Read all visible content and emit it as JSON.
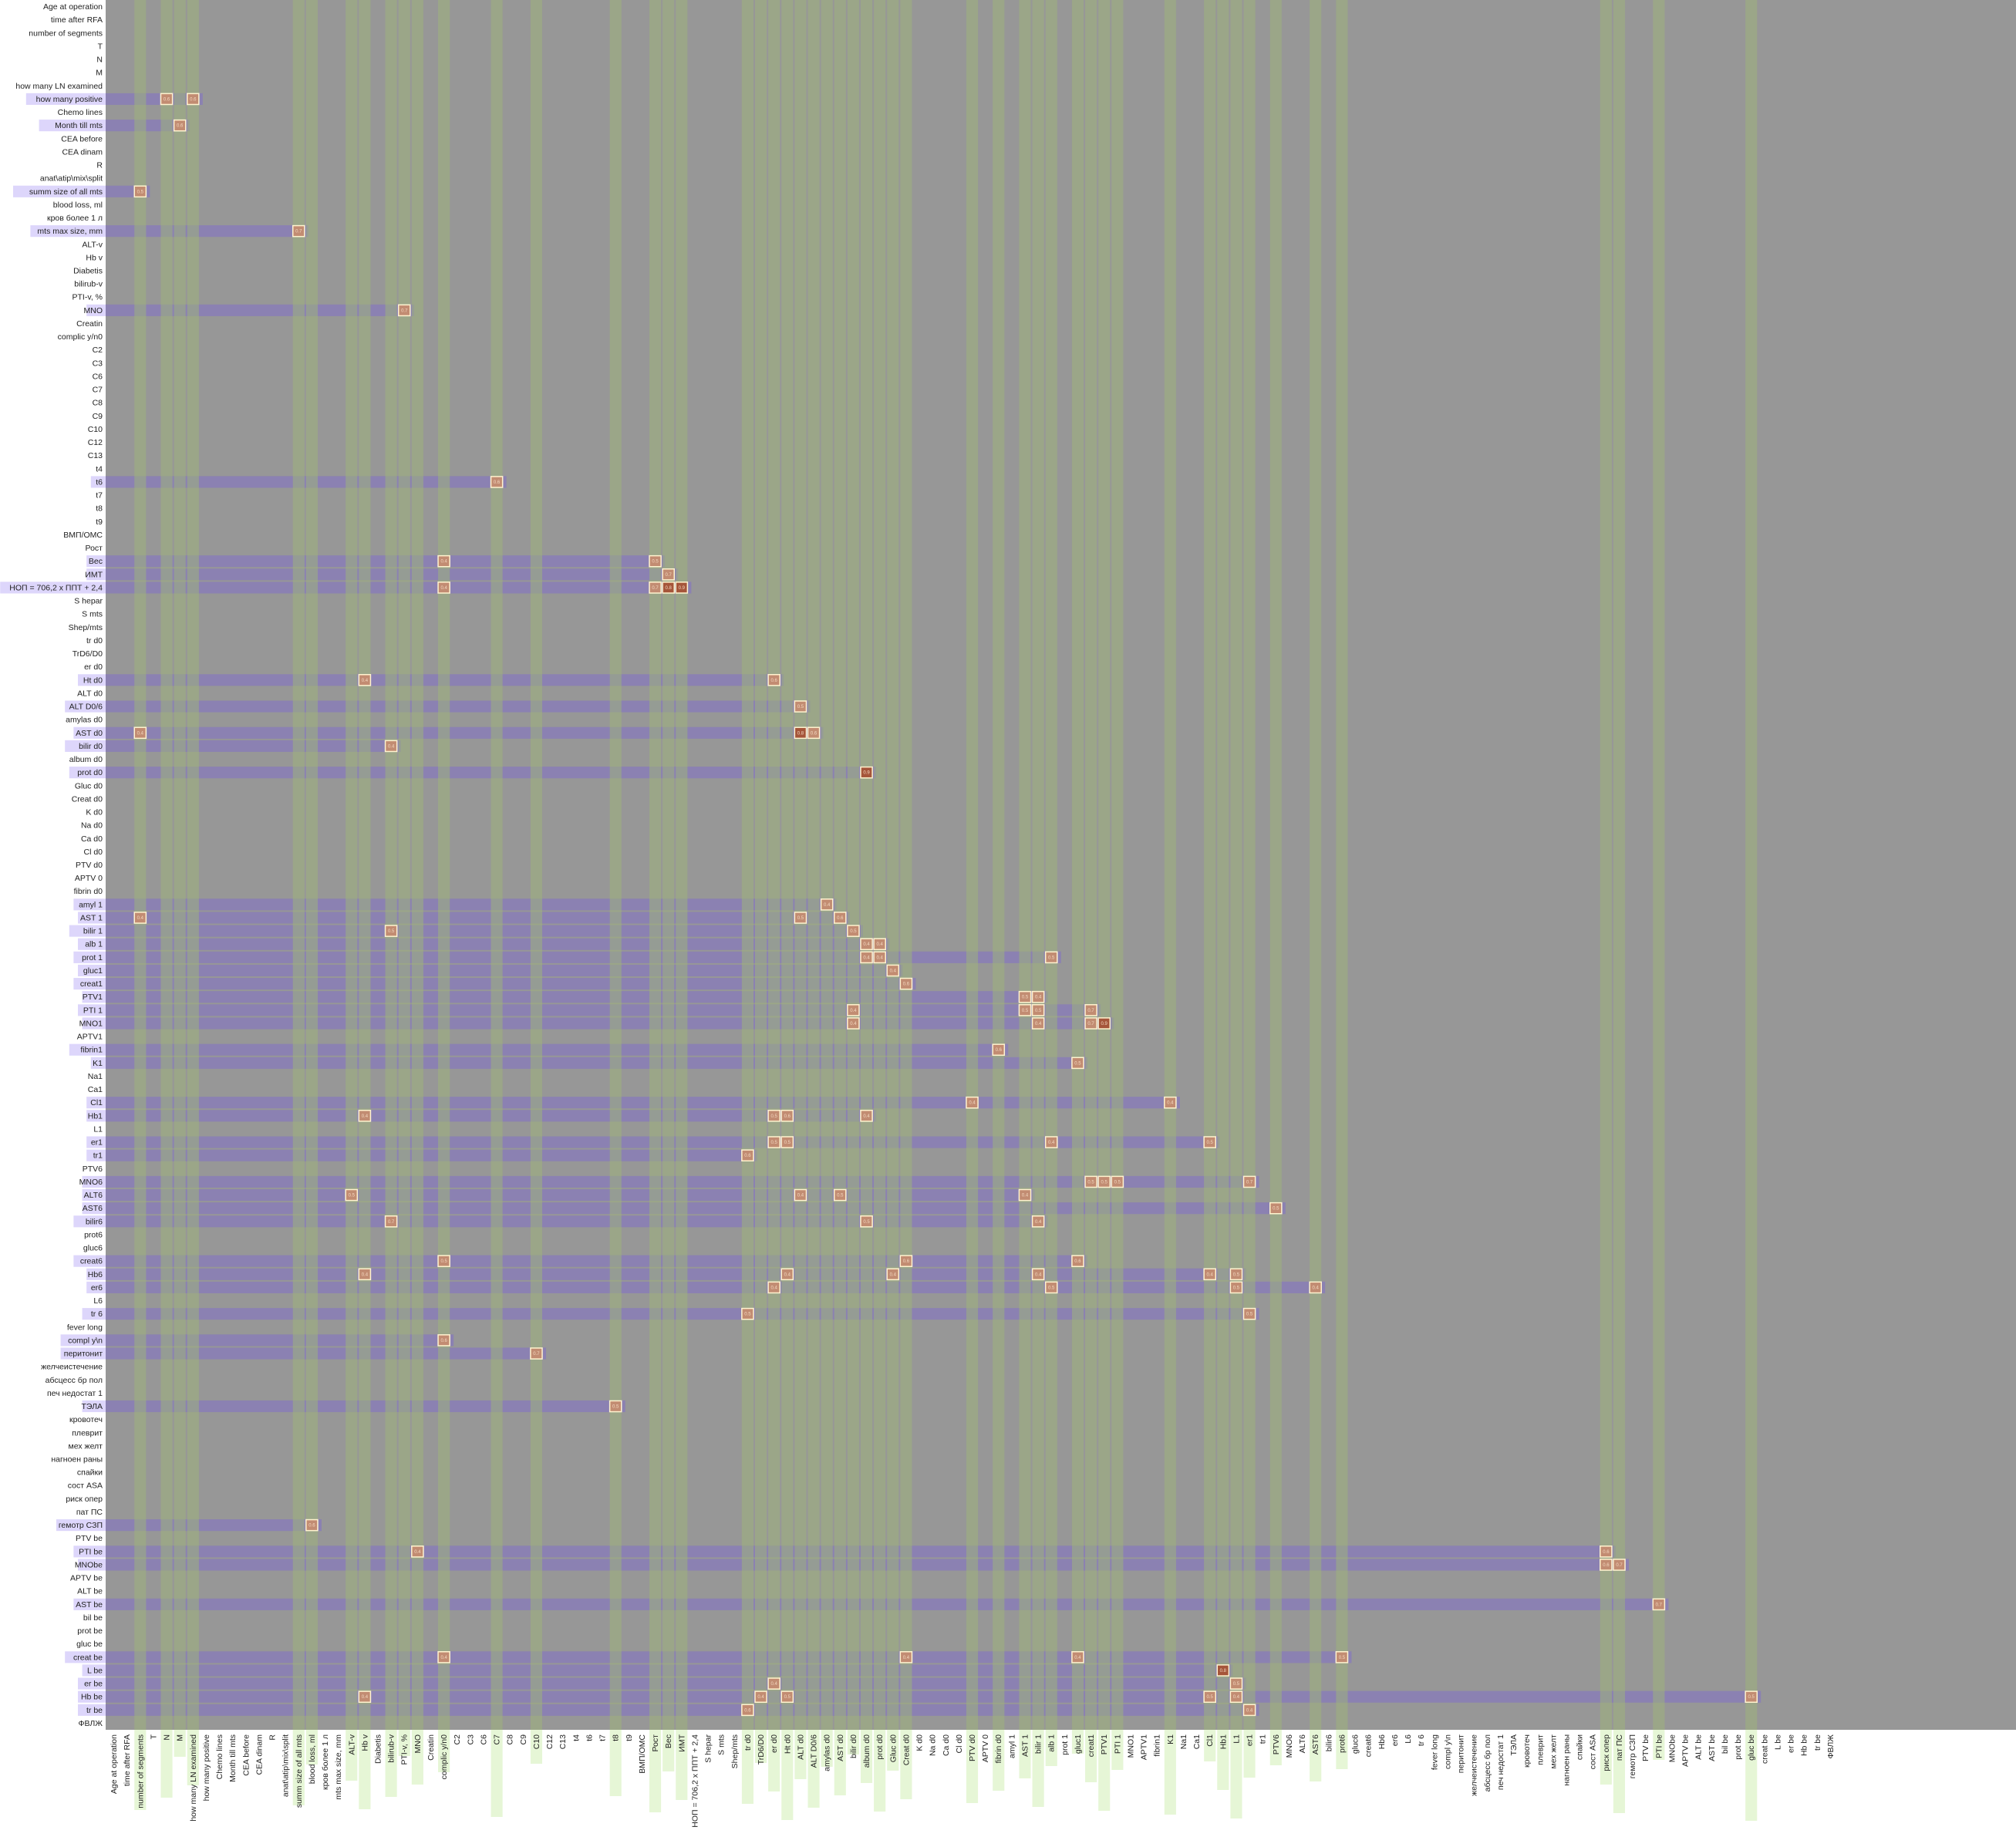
{
  "chart_data": {
    "type": "heatmap",
    "title": "",
    "xlabel": "",
    "ylabel": "",
    "colors": {
      "background": "#979797",
      "row_band": "#8a80b3",
      "row_label_highlight": "#ddd6fb",
      "col_band": "#9fb37c",
      "col_band_below": "#e6f6d6",
      "cell": "#c28c72",
      "cell_dark": "#a5553a",
      "cell_border": "#fff3cf"
    },
    "variables": [
      "Age at operation",
      "time after RFA",
      "number of segments",
      "T",
      "N",
      "M",
      "how many LN examined",
      "how many positive",
      "Chemo lines",
      "Month till mts",
      "CEA before",
      "CEA dinam",
      "R",
      "anat\\atip\\mix\\split",
      "summ size of all mts",
      "blood loss, ml",
      "кров более 1 л",
      "mts max size, mm",
      "ALT-v",
      "Hb v",
      "Diabetis",
      "bilirub-v",
      "PTI-v, %",
      "MNO",
      "Creatin",
      "complic y/n0",
      "C2",
      "C3",
      "C6",
      "C7",
      "C8",
      "C9",
      "C10",
      "C12",
      "C13",
      "t4",
      "t6",
      "t7",
      "t8",
      "t9",
      "ВМП/ОМС",
      "Рост",
      "Вес",
      "ИМТ",
      "НОП = 706,2 х ППТ + 2,4",
      "S hepar",
      "S mts",
      "Shep/mts",
      "tr d0",
      "TrD6/D0",
      "er d0",
      "Ht d0",
      "ALT d0",
      "ALT D0/6",
      "amylas d0",
      "AST d0",
      "bilir d0",
      "album d0",
      "prot d0",
      "Gluc d0",
      "Creat d0",
      "K d0",
      "Na d0",
      "Ca d0",
      "Cl d0",
      "PTV d0",
      "APTV 0",
      "fibrin d0",
      "amyl 1",
      "AST 1",
      "bilir 1",
      "alb 1",
      "prot 1",
      "gluc1",
      "creat1",
      "PTV1",
      "PTI 1",
      "MNO1",
      "APTV1",
      "fibrin1",
      "K1",
      "Na1",
      "Ca1",
      "Cl1",
      "Hb1",
      "L1",
      "er1",
      "tr1",
      "PTV6",
      "MNO6",
      "ALT6",
      "AST6",
      "bilir6",
      "prot6",
      "gluc6",
      "creat6",
      "Hb6",
      "er6",
      "L6",
      "tr 6",
      "fever long",
      "compl y\\n",
      "перитонит",
      "желчеистечение",
      "абсцесс бр пол",
      "печ недостат 1",
      "ТЭЛА",
      "кровотеч",
      "плеврит",
      "мех желт",
      "нагноен раны",
      "спайки",
      "сост ASA",
      "риск опер",
      "пат ПС",
      "гемотр СЗП",
      "PTV be",
      "PTI be",
      "MNObe",
      "APTV be",
      "ALT be",
      "AST be",
      "bil be",
      "prot be",
      "gluc be",
      "creat be",
      "L be",
      "er be",
      "Hb be",
      "tr be",
      "ФВЛЖ"
    ],
    "column_labels": [
      "Age at operation",
      "time after RFA",
      "number of segments",
      "T",
      "N",
      "M",
      "how many LN examined",
      "how many positive",
      "Chemo lines",
      "Month till mts",
      "CEA before",
      "CEA dinam",
      "R",
      "anat\\atip\\mix\\split",
      "summ size of all mts",
      "blood loss, ml",
      "кров более 1 л",
      "mts max size, mm",
      "ALT-v",
      "Hb v",
      "Diabetis",
      "bilirub-v",
      "PTI-v, %",
      "MNO",
      "Creatin",
      "complic y/n0",
      "C2",
      "C3",
      "C6",
      "C7",
      "C8",
      "C9",
      "C10",
      "C12",
      "C13",
      "t4",
      "t6",
      "t7",
      "t8",
      "t9",
      "ВМП/ОМС",
      "Рост",
      "Вес",
      "ИМТ",
      "НОП = 706,2 х ППТ + 2,4",
      "S hepar",
      "S mts",
      "Shep/mts",
      "tr d0",
      "TrD6/D0",
      "er d0",
      "Ht d0",
      "ALT d0",
      "ALT D0/6",
      "amylas d0",
      "AST d0",
      "bilir d0",
      "album d0",
      "prot d0",
      "Gluc d0",
      "Creat d0",
      "K d0",
      "Na d0",
      "Ca d0",
      "Cl d0",
      "PTV d0",
      "APTV 0",
      "fibrin d0",
      "amyl 1",
      "AST 1",
      "bilir 1",
      "alb 1",
      "prot 1",
      "gluc1",
      "creat1",
      "PTV1",
      "PTI 1",
      "MNO1",
      "APTV1",
      "fibrin1",
      "K1",
      "Na1",
      "Ca1",
      "Cl1",
      "Hb1",
      "L1",
      "er1",
      "tr1",
      "PTV6",
      "MNO6",
      "ALT6",
      "AST6",
      "bilir6",
      "prot6",
      "gluc6",
      "creat6",
      "Hb6",
      "er6",
      "L6",
      "tr 6",
      "fever long",
      "compl y\\n",
      "перитонит",
      "желчеистечение",
      "абсцесс бр пол",
      "печ недостат 1",
      "ТЭЛА",
      "кровотеч",
      "плеврит",
      "мех желт",
      "нагноен раны",
      "спайки",
      "сост ASA",
      "риск опер",
      "пат ПС",
      "гемотр СЗП",
      "PTV be",
      "PTI be",
      "MNObe",
      "APTV be",
      "ALT be",
      "AST be",
      "bil be",
      "prot be",
      "gluc be",
      "creat be",
      "L be",
      "er be",
      "Hb be",
      "tr be",
      "ФВЛЖ"
    ],
    "cells": [
      {
        "row": 7,
        "col": 4,
        "value": 0.6
      },
      {
        "row": 7,
        "col": 6,
        "value": 0.6
      },
      {
        "row": 9,
        "col": 5,
        "value": 0.6
      },
      {
        "row": 14,
        "col": 2,
        "value": 0.5
      },
      {
        "row": 17,
        "col": 14,
        "value": 0.7
      },
      {
        "row": 23,
        "col": 22,
        "value": 0.7
      },
      {
        "row": 36,
        "col": 29,
        "value": 0.6
      },
      {
        "row": 42,
        "col": 25,
        "value": 0.4
      },
      {
        "row": 42,
        "col": 41,
        "value": 0.5
      },
      {
        "row": 43,
        "col": 42,
        "value": 0.7
      },
      {
        "row": 44,
        "col": 25,
        "value": 0.4
      },
      {
        "row": 44,
        "col": 41,
        "value": 0.7
      },
      {
        "row": 44,
        "col": 42,
        "value": 0.8
      },
      {
        "row": 44,
        "col": 43,
        "value": 0.9
      },
      {
        "row": 51,
        "col": 19,
        "value": 0.4
      },
      {
        "row": 51,
        "col": 50,
        "value": 0.6
      },
      {
        "row": 53,
        "col": 52,
        "value": 0.5
      },
      {
        "row": 55,
        "col": 2,
        "value": 0.4
      },
      {
        "row": 55,
        "col": 52,
        "value": 0.8
      },
      {
        "row": 55,
        "col": 53,
        "value": 0.6
      },
      {
        "row": 56,
        "col": 21,
        "value": 0.4
      },
      {
        "row": 58,
        "col": 57,
        "value": 0.9
      },
      {
        "row": 68,
        "col": 54,
        "value": 0.4
      },
      {
        "row": 69,
        "col": 2,
        "value": 0.4
      },
      {
        "row": 69,
        "col": 52,
        "value": 0.5
      },
      {
        "row": 69,
        "col": 55,
        "value": 0.6
      },
      {
        "row": 70,
        "col": 21,
        "value": 0.5
      },
      {
        "row": 70,
        "col": 56,
        "value": 0.5
      },
      {
        "row": 71,
        "col": 57,
        "value": 0.4
      },
      {
        "row": 71,
        "col": 58,
        "value": 0.4
      },
      {
        "row": 72,
        "col": 57,
        "value": 0.4
      },
      {
        "row": 72,
        "col": 58,
        "value": 0.4
      },
      {
        "row": 72,
        "col": 71,
        "value": 0.5
      },
      {
        "row": 73,
        "col": 59,
        "value": 0.4
      },
      {
        "row": 74,
        "col": 60,
        "value": 0.6
      },
      {
        "row": 75,
        "col": 69,
        "value": 0.5
      },
      {
        "row": 75,
        "col": 70,
        "value": 0.4
      },
      {
        "row": 76,
        "col": 56,
        "value": 0.4
      },
      {
        "row": 76,
        "col": 69,
        "value": 0.5
      },
      {
        "row": 76,
        "col": 70,
        "value": 0.5
      },
      {
        "row": 76,
        "col": 74,
        "value": 0.7
      },
      {
        "row": 77,
        "col": 56,
        "value": 0.4
      },
      {
        "row": 77,
        "col": 70,
        "value": 0.4
      },
      {
        "row": 77,
        "col": 74,
        "value": 0.7
      },
      {
        "row": 77,
        "col": 75,
        "value": 0.9
      },
      {
        "row": 79,
        "col": 67,
        "value": 0.6
      },
      {
        "row": 80,
        "col": 73,
        "value": 0.5
      },
      {
        "row": 83,
        "col": 65,
        "value": 0.4
      },
      {
        "row": 83,
        "col": 80,
        "value": 0.4
      },
      {
        "row": 84,
        "col": 19,
        "value": 0.4
      },
      {
        "row": 84,
        "col": 50,
        "value": 0.5
      },
      {
        "row": 84,
        "col": 51,
        "value": 0.6
      },
      {
        "row": 84,
        "col": 57,
        "value": 0.4
      },
      {
        "row": 86,
        "col": 50,
        "value": 0.5
      },
      {
        "row": 86,
        "col": 51,
        "value": 0.5
      },
      {
        "row": 86,
        "col": 71,
        "value": 0.4
      },
      {
        "row": 86,
        "col": 83,
        "value": 0.5
      },
      {
        "row": 87,
        "col": 48,
        "value": 0.6
      },
      {
        "row": 89,
        "col": 74,
        "value": 0.5
      },
      {
        "row": 89,
        "col": 75,
        "value": 0.5
      },
      {
        "row": 89,
        "col": 76,
        "value": 0.5
      },
      {
        "row": 89,
        "col": 86,
        "value": 0.7
      },
      {
        "row": 90,
        "col": 18,
        "value": 0.5
      },
      {
        "row": 90,
        "col": 52,
        "value": 0.4
      },
      {
        "row": 90,
        "col": 55,
        "value": 0.5
      },
      {
        "row": 90,
        "col": 69,
        "value": 0.4
      },
      {
        "row": 91,
        "col": 88,
        "value": 0.5
      },
      {
        "row": 92,
        "col": 21,
        "value": 0.7
      },
      {
        "row": 92,
        "col": 57,
        "value": 0.5
      },
      {
        "row": 92,
        "col": 70,
        "value": 0.4
      },
      {
        "row": 95,
        "col": 25,
        "value": 0.5
      },
      {
        "row": 95,
        "col": 60,
        "value": 0.6
      },
      {
        "row": 95,
        "col": 73,
        "value": 0.6
      },
      {
        "row": 96,
        "col": 19,
        "value": 0.4
      },
      {
        "row": 96,
        "col": 51,
        "value": 0.4
      },
      {
        "row": 96,
        "col": 59,
        "value": 0.4
      },
      {
        "row": 96,
        "col": 70,
        "value": 0.4
      },
      {
        "row": 96,
        "col": 83,
        "value": 0.4
      },
      {
        "row": 96,
        "col": 85,
        "value": 0.5
      },
      {
        "row": 97,
        "col": 50,
        "value": 0.4
      },
      {
        "row": 97,
        "col": 71,
        "value": 0.5
      },
      {
        "row": 97,
        "col": 85,
        "value": 0.5
      },
      {
        "row": 97,
        "col": 91,
        "value": 0.4
      },
      {
        "row": 99,
        "col": 48,
        "value": 0.5
      },
      {
        "row": 99,
        "col": 86,
        "value": 0.5
      },
      {
        "row": 101,
        "col": 25,
        "value": 0.6
      },
      {
        "row": 102,
        "col": 32,
        "value": 0.7
      },
      {
        "row": 106,
        "col": 38,
        "value": 0.5
      },
      {
        "row": 115,
        "col": 15,
        "value": 0.6
      },
      {
        "row": 117,
        "col": 23,
        "value": 0.4
      },
      {
        "row": 117,
        "col": 113,
        "value": 0.6
      },
      {
        "row": 118,
        "col": 113,
        "value": 0.6
      },
      {
        "row": 118,
        "col": 114,
        "value": 0.7
      },
      {
        "row": 121,
        "col": 117,
        "value": 0.7
      },
      {
        "row": 125,
        "col": 25,
        "value": 0.4
      },
      {
        "row": 125,
        "col": 60,
        "value": 0.4
      },
      {
        "row": 125,
        "col": 73,
        "value": 0.4
      },
      {
        "row": 125,
        "col": 93,
        "value": 0.5
      },
      {
        "row": 126,
        "col": 84,
        "value": 0.8
      },
      {
        "row": 127,
        "col": 50,
        "value": 0.4
      },
      {
        "row": 127,
        "col": 85,
        "value": 0.5
      },
      {
        "row": 128,
        "col": 19,
        "value": 0.4
      },
      {
        "row": 128,
        "col": 49,
        "value": 0.4
      },
      {
        "row": 128,
        "col": 51,
        "value": 0.5
      },
      {
        "row": 128,
        "col": 83,
        "value": 0.5
      },
      {
        "row": 128,
        "col": 85,
        "value": 0.4
      },
      {
        "row": 128,
        "col": 124,
        "value": 0.5
      },
      {
        "row": 129,
        "col": 48,
        "value": 0.6
      },
      {
        "row": 129,
        "col": 86,
        "value": 0.4
      }
    ],
    "legend": "none",
    "grid": false
  }
}
